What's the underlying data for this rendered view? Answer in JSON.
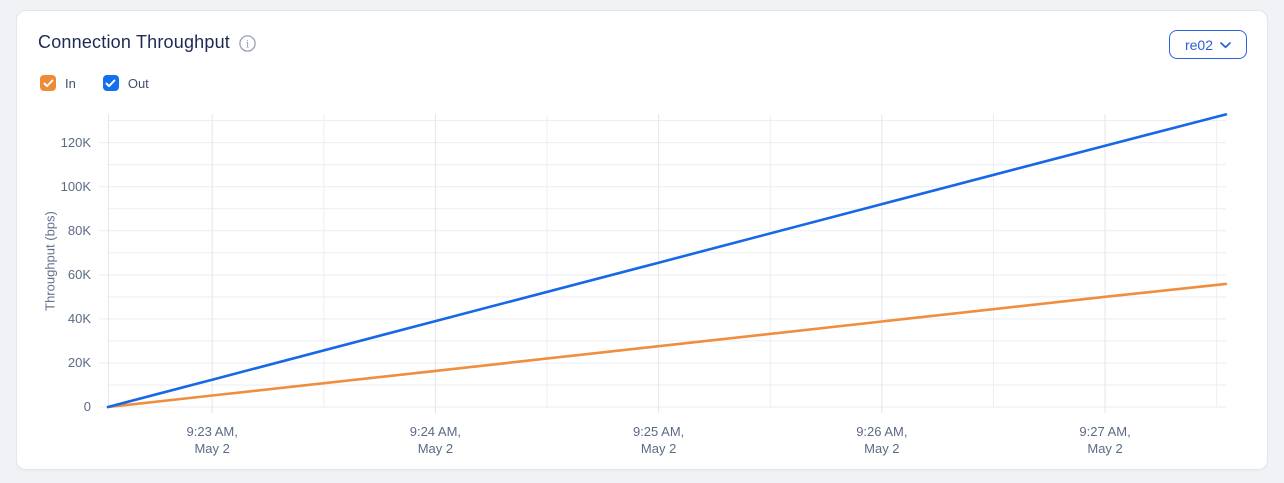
{
  "card": {
    "title": "Connection Throughput",
    "info_icon": "info-circle"
  },
  "controls": {
    "series_toggles": [
      {
        "label": "In",
        "checked": true,
        "color": "#ED8B36"
      },
      {
        "label": "Out",
        "checked": true,
        "color": "#1570EF"
      }
    ],
    "scope_select": {
      "value": "re02",
      "chevron_icon": "chevron-down"
    }
  },
  "colors": {
    "accent_blue": "#2C63DC",
    "line_in": "#EF8E3E",
    "line_out": "#1768E5",
    "grid_minor": "#EEEFF3",
    "grid_major": "#E4E6EC",
    "tick_text": "#5C6A84",
    "title_text": "#1D2A52",
    "card_bg": "#FFFFFF",
    "page_bg": "#F1F2F6"
  },
  "chart_data": {
    "type": "line",
    "title": "Connection Throughput",
    "xlabel": "",
    "ylabel": "Throughput (bps)",
    "grid": true,
    "legend": "checkbox toggles, top-left",
    "x_start_time": "9:22:32 AM, May 2",
    "x_end_time": "9:27:32 AM, May 2",
    "xlim_s": [
      0,
      300.5
    ],
    "ylim": [
      0,
      133000
    ],
    "y_minor_step": 10000,
    "y_major_step": 20000,
    "y_ticks": [
      {
        "v": 0,
        "label": "0"
      },
      {
        "v": 20000,
        "label": "20K"
      },
      {
        "v": 40000,
        "label": "40K"
      },
      {
        "v": 60000,
        "label": "60K"
      },
      {
        "v": 80000,
        "label": "80K"
      },
      {
        "v": 100000,
        "label": "100K"
      },
      {
        "v": 120000,
        "label": "120K"
      }
    ],
    "x_ticks": [
      {
        "s": 28,
        "time": "9:23 AM,",
        "date": "May 2"
      },
      {
        "s": 88,
        "time": "9:24 AM,",
        "date": "May 2"
      },
      {
        "s": 148,
        "time": "9:25 AM,",
        "date": "May 2"
      },
      {
        "s": 208,
        "time": "9:26 AM,",
        "date": "May 2"
      },
      {
        "s": 268,
        "time": "9:27 AM,",
        "date": "May 2"
      }
    ],
    "x_minor_s": [
      58,
      118,
      178,
      238,
      298
    ],
    "series": [
      {
        "name": "In",
        "color": "#EF8E3E",
        "points": [
          [
            0,
            0
          ],
          [
            28,
            5200
          ],
          [
            88,
            16400
          ],
          [
            148,
            27600
          ],
          [
            208,
            38800
          ],
          [
            268,
            50000
          ],
          [
            300.5,
            55900
          ]
        ]
      },
      {
        "name": "Out",
        "color": "#1768E5",
        "points": [
          [
            0,
            0
          ],
          [
            28,
            12400
          ],
          [
            88,
            39000
          ],
          [
            148,
            65500
          ],
          [
            208,
            92100
          ],
          [
            268,
            118600
          ],
          [
            300.5,
            132800
          ]
        ]
      }
    ]
  }
}
